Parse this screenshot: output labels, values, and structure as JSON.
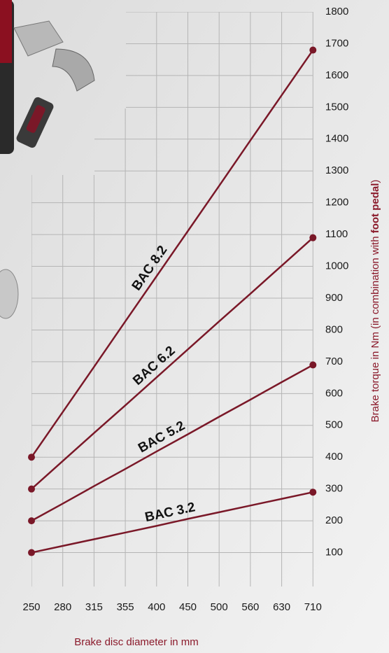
{
  "chart_data": {
    "type": "line",
    "x_label": "Brake disc diameter in mm",
    "y_label": [
      "Brake torque in Nm (in combination with ",
      "foot pedal",
      ")"
    ],
    "categories": [
      "250",
      "280",
      "315",
      "355",
      "400",
      "450",
      "500",
      "560",
      "630",
      "710"
    ],
    "series": [
      {
        "name": "BAC 8.2",
        "color": "#7a1828",
        "values": [
          400,
          542,
          684,
          827,
          969,
          1111,
          1253,
          1396,
          1538,
          1680
        ]
      },
      {
        "name": "BAC 6.2",
        "color": "#7a1828",
        "values": [
          300,
          388,
          476,
          563,
          651,
          739,
          827,
          914,
          1002,
          1090
        ]
      },
      {
        "name": "BAC 5.2",
        "color": "#7a1828",
        "values": [
          200,
          254,
          309,
          363,
          418,
          472,
          527,
          581,
          636,
          690
        ]
      },
      {
        "name": "BAC 3.2",
        "color": "#7a1828",
        "values": [
          100,
          121,
          142,
          163,
          184,
          206,
          227,
          248,
          269,
          290
        ]
      }
    ],
    "ylim": [
      0,
      1800
    ],
    "yticks": [
      100,
      200,
      300,
      400,
      500,
      600,
      700,
      800,
      900,
      1000,
      1100,
      1200,
      1300,
      1400,
      1500,
      1600,
      1700,
      1800
    ],
    "grid": true
  }
}
